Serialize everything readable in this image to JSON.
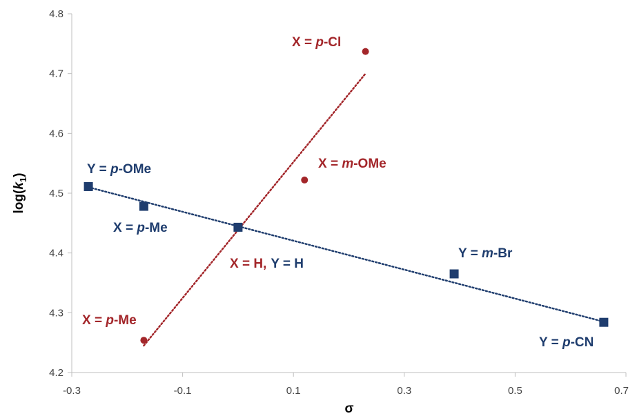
{
  "chart_data": {
    "type": "scatter",
    "xlabel": "σ",
    "ylabel": "log(k1)",
    "xlim": [
      -0.3,
      0.7
    ],
    "ylim": [
      4.2,
      4.8
    ],
    "xticks": [
      "-0.3",
      "-0.1",
      "0.1",
      "0.3",
      "0.5",
      "0.7"
    ],
    "yticks": [
      "4.2",
      "4.3",
      "4.4",
      "4.5",
      "4.6",
      "4.7",
      "4.8"
    ],
    "grid": false,
    "colors": {
      "X": "#a3262a",
      "Y": "#1f3d6e"
    },
    "series": [
      {
        "key": "X",
        "marker": "circle",
        "points": [
          {
            "x": -0.17,
            "y": 4.254
          },
          {
            "x": 0.0,
            "y": 4.443
          },
          {
            "x": 0.12,
            "y": 4.522
          },
          {
            "x": 0.23,
            "y": 4.737
          }
        ],
        "trendline": {
          "x_start": -0.17,
          "y_start": 4.245,
          "x_end": 0.23,
          "y_end": 4.7
        }
      },
      {
        "key": "Y",
        "marker": "square",
        "points": [
          {
            "x": -0.27,
            "y": 4.511
          },
          {
            "x": -0.17,
            "y": 4.478
          },
          {
            "x": 0.0,
            "y": 4.443
          },
          {
            "x": 0.39,
            "y": 4.365
          },
          {
            "x": 0.66,
            "y": 4.284
          }
        ],
        "trendline": {
          "x_start": -0.27,
          "y_start": 4.51,
          "x_end": 0.66,
          "y_end": 4.285
        }
      }
    ],
    "annotations": [
      {
        "series": "X",
        "prefix": "X = ",
        "italic": "p",
        "suffix": "-Cl"
      },
      {
        "series": "X",
        "prefix": "X = ",
        "italic": "m",
        "suffix": "-OMe"
      },
      {
        "series": "X",
        "prefix": "X = ",
        "italic": "p",
        "suffix": "-Me"
      },
      {
        "series": "Y",
        "prefix": "Y = ",
        "italic": "p",
        "suffix": "-OMe"
      },
      {
        "series": "Y",
        "prefix": "X = ",
        "italic": "p",
        "suffix": "-Me"
      },
      {
        "series": "Y",
        "prefix": "Y = ",
        "italic": "m",
        "suffix": "-Br"
      },
      {
        "series": "Y",
        "prefix": "Y = ",
        "italic": "p",
        "suffix": "-CN"
      }
    ],
    "center_label": {
      "x_part": "X = H,",
      "y_part": "Y = H"
    }
  }
}
